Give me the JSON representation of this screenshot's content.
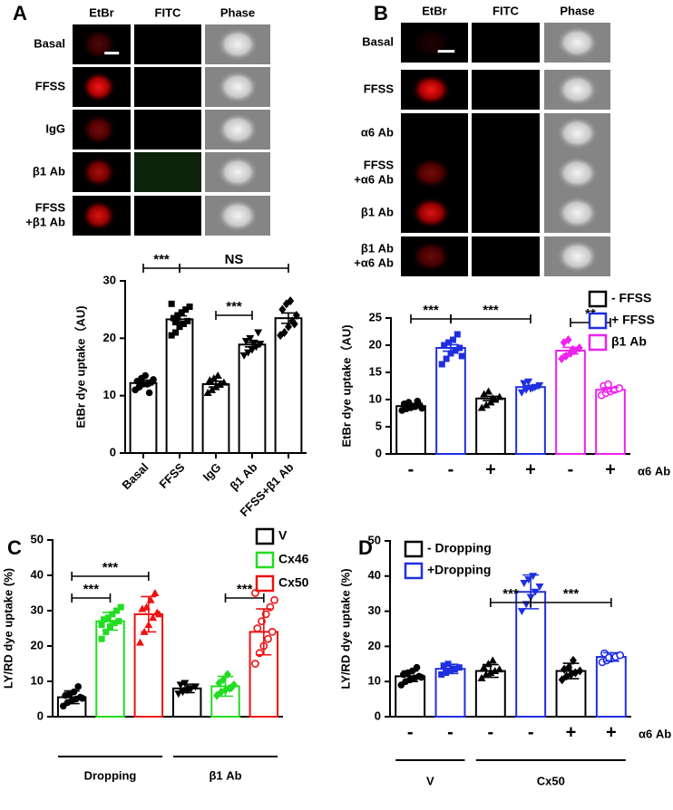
{
  "panel_labels": [
    "A",
    "B",
    "C",
    "D"
  ],
  "image_panels": [
    {
      "columns": [
        "EtBr",
        "FITC",
        "Phase"
      ],
      "rows": [
        "Basal",
        "FFSS",
        "IgG",
        "β1 Ab",
        [
          "FFSS",
          "+β1 Ab"
        ]
      ]
    },
    {
      "columns": [
        "EtBr",
        "FITC",
        "Phase"
      ],
      "rows": [
        "Basal",
        "FFSS",
        "α6 Ab",
        [
          "FFSS",
          "+α6 Ab"
        ],
        "β1 Ab",
        [
          "β1 Ab",
          "+α6 Ab"
        ]
      ]
    }
  ],
  "chart_data": [
    {
      "type": "bar",
      "ylabel": "EtBr dye uptake（AU)",
      "categories": [
        "Basal",
        "FFSS",
        "IgG",
        "β1 Ab",
        "FFSS+β1 Ab"
      ],
      "ylim": [
        0,
        30
      ],
      "yticks": [
        0,
        10,
        20,
        30
      ],
      "series": [
        {
          "color": "#000000",
          "values": [
            12.2,
            23.3,
            12.0,
            18.9,
            23.5
          ],
          "errors": [
            0.5,
            0.6,
            0.5,
            0.4,
            0.9
          ],
          "markers": [
            "circle",
            "square",
            "triangle",
            "triangle-down",
            "diamond"
          ],
          "points": [
            [
              11,
              11.5,
              12,
              12,
              12.3,
              12.5,
              13,
              13.5,
              10.5,
              12.8
            ],
            [
              20.5,
              21,
              22,
              22.5,
              23,
              23.5,
              24,
              24.5,
              25,
              25.5,
              26,
              22.8
            ],
            [
              10.5,
              11,
              11.5,
              12,
              12.3,
              12.7,
              13,
              13.5
            ],
            [
              17,
              17.5,
              18,
              18.5,
              19,
              19.5,
              20,
              19.2,
              21
            ],
            [
              20.5,
              21,
              22,
              23,
              24,
              25,
              26,
              26.5,
              22.5
            ]
          ]
        }
      ],
      "annotations": [
        "***",
        "NS",
        "***"
      ]
    },
    {
      "type": "bar",
      "ylabel": "EtBr dye uptake（AU)",
      "xlabel": "α6 Ab",
      "categories": [
        "-",
        "-",
        "+",
        "+",
        "-",
        "+"
      ],
      "ylim": [
        0,
        25
      ],
      "yticks": [
        0,
        5,
        10,
        15,
        20,
        25
      ],
      "series": [
        {
          "name": "- FFSS",
          "color": "#000000",
          "values": [
            8.8,
            null,
            10.2,
            null,
            null,
            null
          ],
          "errors": [
            0.2,
            null,
            0.4,
            null,
            null,
            null
          ],
          "markers": [
            "circle",
            null,
            "triangle",
            null,
            null,
            null
          ],
          "points": [
            [
              8,
              8.3,
              8.5,
              8.7,
              9,
              9.2,
              9.5,
              8.8,
              9.7,
              8.4
            ],
            null,
            [
              8.5,
              9,
              9.5,
              10,
              10.5,
              11,
              11.5,
              10.2
            ],
            null,
            null,
            null
          ]
        },
        {
          "name": "+ FFSS",
          "color": "#1f2fe0",
          "values": [
            null,
            19.5,
            null,
            12.3,
            null,
            null
          ],
          "errors": [
            null,
            0.6,
            null,
            0.3,
            null,
            null
          ],
          "markers": [
            null,
            "square",
            null,
            "triangle-down",
            null,
            null
          ],
          "points": [
            null,
            [
              16.5,
              17.5,
              18.5,
              19,
              19.5,
              20,
              20.5,
              21,
              22,
              18
            ],
            null,
            [
              11.3,
              11.8,
              12,
              12.3,
              12.6,
              13,
              13.3,
              12.1
            ],
            null,
            null
          ]
        },
        {
          "name": "β1 Ab",
          "color": "#ee22ee",
          "values": [
            null,
            null,
            null,
            null,
            19.0,
            11.8
          ],
          "errors": [
            null,
            null,
            null,
            null,
            0.6,
            0.4
          ],
          "markers": [
            null,
            null,
            null,
            null,
            "diamond",
            "circle-open"
          ],
          "points": [
            null,
            null,
            null,
            null,
            [
              17.5,
              18,
              18.5,
              19,
              19.5,
              20.5,
              21,
              19.2
            ],
            [
              10.8,
              11.2,
              11.5,
              11.8,
              12.1,
              12.5,
              12.8
            ]
          ]
        }
      ],
      "annotations": [
        "***",
        "***",
        "**"
      ]
    },
    {
      "type": "bar",
      "grouped": true,
      "ylabel": "LY/RD dye uptake (%)",
      "categories": [
        "Dropping",
        "β1 Ab"
      ],
      "ylim": [
        0,
        50
      ],
      "yticks": [
        0,
        10,
        20,
        30,
        40,
        50
      ],
      "series": [
        {
          "name": "V",
          "color": "#000000",
          "values": [
            5.5,
            8.0
          ],
          "errors": [
            1.8,
            1.2
          ],
          "markers": [
            "circle",
            "triangle-down"
          ],
          "points": [
            [
              3,
              4,
              4.5,
              5,
              5.5,
              6,
              6.5,
              7,
              8.5,
              5.2
            ],
            [
              6.5,
              7,
              7.5,
              8,
              8.5,
              9,
              9.5,
              7.8
            ]
          ]
        },
        {
          "name": "Cx46",
          "color": "#22dd22",
          "values": [
            27,
            8.6
          ],
          "errors": [
            2.5,
            2.8
          ],
          "markers": [
            "square",
            "diamond"
          ],
          "points": [
            [
              22,
              24,
              25.5,
              26.5,
              27,
              27.5,
              28,
              29,
              30,
              31,
              26
            ],
            [
              6,
              7,
              7.5,
              8,
              9,
              9.5,
              10.5,
              12,
              8.3
            ]
          ]
        },
        {
          "name": "Cx50",
          "color": "#ee1111",
          "values": [
            29,
            24
          ],
          "errors": [
            5,
            6.5
          ],
          "markers": [
            "triangle",
            "circle-open"
          ],
          "points": [
            [
              21,
              24,
              26,
              28,
              29.5,
              30.5,
              31,
              33,
              35,
              29
            ],
            [
              15,
              18,
              20,
              22,
              24,
              25,
              27,
              29,
              31,
              33,
              35
            ]
          ]
        }
      ],
      "annotations": [
        "***",
        "***",
        "***"
      ]
    },
    {
      "type": "bar",
      "ylabel": "LY/RD dye uptake (%)",
      "xlabel": "α6 Ab",
      "categories": [
        "-",
        "-",
        "-",
        "-",
        "+",
        "+"
      ],
      "groups": [
        "V",
        "Cx50"
      ],
      "ylim": [
        0,
        50
      ],
      "yticks": [
        0,
        10,
        20,
        30,
        40,
        50
      ],
      "series": [
        {
          "name": "- Dropping",
          "color": "#000000",
          "values": [
            11.5,
            null,
            13,
            null,
            13,
            null
          ],
          "errors": [
            1.5,
            null,
            1.8,
            null,
            2.2,
            null
          ],
          "markers": [
            "circle",
            null,
            "triangle",
            null,
            "diamond",
            null
          ],
          "points": [
            [
              9,
              10,
              10.5,
              11,
              11.5,
              12,
              12.5,
              13,
              14,
              11.2
            ],
            null,
            [
              11,
              12,
              12.5,
              13,
              13.5,
              14,
              15,
              16
            ],
            null,
            [
              10.5,
              11.5,
              12,
              12.5,
              13,
              13.5,
              14,
              16
            ],
            null
          ]
        },
        {
          "name": "+Dropping",
          "color": "#1f2fe0",
          "values": [
            null,
            13.6,
            null,
            35.5,
            null,
            17
          ],
          "errors": [
            null,
            1.3,
            null,
            4.8,
            null,
            1.2
          ],
          "markers": [
            null,
            "square",
            null,
            "triangle-down",
            null,
            "circle-open"
          ],
          "points": [
            null,
            [
              12,
              12.5,
              13,
              13.5,
              14,
              14.5,
              15,
              13.7
            ],
            null,
            [
              30,
              32,
              34,
              35.5,
              37,
              38,
              39,
              40
            ],
            null,
            [
              15.5,
              16,
              16.5,
              17,
              17.5,
              18,
              16.8
            ]
          ]
        }
      ],
      "annotations": [
        "***",
        "***"
      ]
    }
  ]
}
